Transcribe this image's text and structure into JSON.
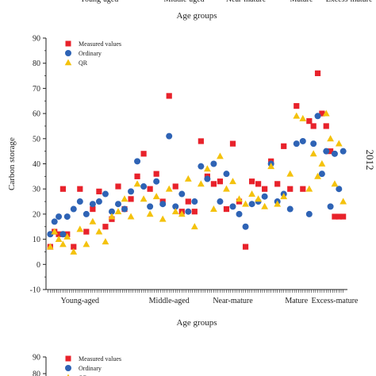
{
  "top_strip": {
    "category_labels": [
      "Young-aged",
      "Middle-aged",
      "Near-mature",
      "Mature",
      "Excess-mature"
    ],
    "xlabel": "Age groups"
  },
  "chart_data": {
    "type": "scatter",
    "side_label": "2012",
    "xlabel": "Age groups",
    "ylabel": "Carbon storage",
    "ylim": [
      -10,
      90
    ],
    "yticks": [
      -10,
      0,
      10,
      20,
      30,
      40,
      50,
      60,
      70,
      80,
      90
    ],
    "categories": [
      "Young-aged",
      "Middle-aged",
      "Near-mature",
      "Mature",
      "Excess-mature"
    ],
    "legend_position": "top-left",
    "grid": false,
    "x_unit": "sample index (1-140), categories centered at 16, 58, 88, 118, 136",
    "series": [
      {
        "name": "Measured values",
        "marker": "square",
        "color": "#e8222b",
        "points": [
          [
            2,
            7
          ],
          [
            4,
            13
          ],
          [
            6,
            12
          ],
          [
            8,
            30
          ],
          [
            10,
            12
          ],
          [
            13,
            7
          ],
          [
            16,
            30
          ],
          [
            19,
            13
          ],
          [
            22,
            22
          ],
          [
            25,
            29
          ],
          [
            28,
            15
          ],
          [
            31,
            18
          ],
          [
            34,
            31
          ],
          [
            37,
            22
          ],
          [
            40,
            26
          ],
          [
            43,
            35
          ],
          [
            46,
            44
          ],
          [
            49,
            30
          ],
          [
            52,
            36
          ],
          [
            55,
            25
          ],
          [
            58,
            67
          ],
          [
            61,
            31
          ],
          [
            64,
            21
          ],
          [
            67,
            25
          ],
          [
            70,
            21
          ],
          [
            73,
            49
          ],
          [
            76,
            35
          ],
          [
            79,
            32
          ],
          [
            82,
            33
          ],
          [
            85,
            22
          ],
          [
            88,
            48
          ],
          [
            91,
            25
          ],
          [
            94,
            7
          ],
          [
            97,
            33
          ],
          [
            100,
            32
          ],
          [
            103,
            30
          ],
          [
            106,
            41
          ],
          [
            109,
            32
          ],
          [
            112,
            47
          ],
          [
            115,
            30
          ],
          [
            118,
            63
          ],
          [
            121,
            30
          ],
          [
            124,
            57
          ],
          [
            126,
            55
          ],
          [
            128,
            76
          ],
          [
            130,
            60
          ],
          [
            132,
            55
          ],
          [
            134,
            45
          ],
          [
            136,
            19
          ],
          [
            138,
            19
          ],
          [
            140,
            19
          ]
        ]
      },
      {
        "name": "Ordinary",
        "marker": "circle",
        "color": "#2e63b5",
        "points": [
          [
            2,
            12
          ],
          [
            4,
            17
          ],
          [
            6,
            19
          ],
          [
            8,
            12
          ],
          [
            10,
            19
          ],
          [
            13,
            22
          ],
          [
            16,
            25
          ],
          [
            19,
            20
          ],
          [
            22,
            24
          ],
          [
            25,
            25
          ],
          [
            28,
            28
          ],
          [
            31,
            21
          ],
          [
            34,
            24
          ],
          [
            37,
            22
          ],
          [
            40,
            29
          ],
          [
            43,
            41
          ],
          [
            46,
            31
          ],
          [
            49,
            23
          ],
          [
            52,
            33
          ],
          [
            55,
            24
          ],
          [
            58,
            51
          ],
          [
            61,
            23
          ],
          [
            64,
            28
          ],
          [
            67,
            21
          ],
          [
            70,
            25
          ],
          [
            73,
            39
          ],
          [
            76,
            34
          ],
          [
            79,
            40
          ],
          [
            82,
            25
          ],
          [
            85,
            36
          ],
          [
            88,
            23
          ],
          [
            91,
            20
          ],
          [
            94,
            15
          ],
          [
            97,
            24
          ],
          [
            100,
            25
          ],
          [
            103,
            27
          ],
          [
            106,
            40
          ],
          [
            109,
            25
          ],
          [
            112,
            28
          ],
          [
            115,
            22
          ],
          [
            118,
            48
          ],
          [
            121,
            49
          ],
          [
            124,
            20
          ],
          [
            126,
            48
          ],
          [
            128,
            59
          ],
          [
            130,
            36
          ],
          [
            132,
            45
          ],
          [
            134,
            23
          ],
          [
            136,
            44
          ],
          [
            138,
            30
          ],
          [
            140,
            45
          ]
        ]
      },
      {
        "name": "QR",
        "marker": "triangle",
        "color": "#f4c20d",
        "points": [
          [
            2,
            7
          ],
          [
            4,
            13
          ],
          [
            6,
            10
          ],
          [
            8,
            8
          ],
          [
            10,
            11
          ],
          [
            13,
            5
          ],
          [
            16,
            14
          ],
          [
            19,
            8
          ],
          [
            22,
            17
          ],
          [
            25,
            13
          ],
          [
            28,
            9
          ],
          [
            31,
            19
          ],
          [
            34,
            21
          ],
          [
            37,
            26
          ],
          [
            40,
            19
          ],
          [
            43,
            32
          ],
          [
            46,
            26
          ],
          [
            49,
            20
          ],
          [
            52,
            27
          ],
          [
            55,
            18
          ],
          [
            58,
            30
          ],
          [
            61,
            21
          ],
          [
            64,
            20
          ],
          [
            67,
            34
          ],
          [
            70,
            15
          ],
          [
            73,
            32
          ],
          [
            76,
            38
          ],
          [
            79,
            22
          ],
          [
            82,
            43
          ],
          [
            85,
            30
          ],
          [
            88,
            33
          ],
          [
            91,
            26
          ],
          [
            94,
            24
          ],
          [
            97,
            28
          ],
          [
            100,
            26
          ],
          [
            103,
            23
          ],
          [
            106,
            39
          ],
          [
            109,
            24
          ],
          [
            112,
            27
          ],
          [
            115,
            36
          ],
          [
            118,
            59
          ],
          [
            121,
            58
          ],
          [
            124,
            30
          ],
          [
            126,
            44
          ],
          [
            128,
            35
          ],
          [
            130,
            40
          ],
          [
            132,
            60
          ],
          [
            134,
            50
          ],
          [
            136,
            32
          ],
          [
            138,
            48
          ],
          [
            140,
            25
          ]
        ]
      }
    ]
  },
  "bottom_panel": {
    "ytick_top": "90",
    "ytick_next": "80",
    "legend": [
      "Measured values",
      "Ordinary",
      "QR"
    ]
  }
}
